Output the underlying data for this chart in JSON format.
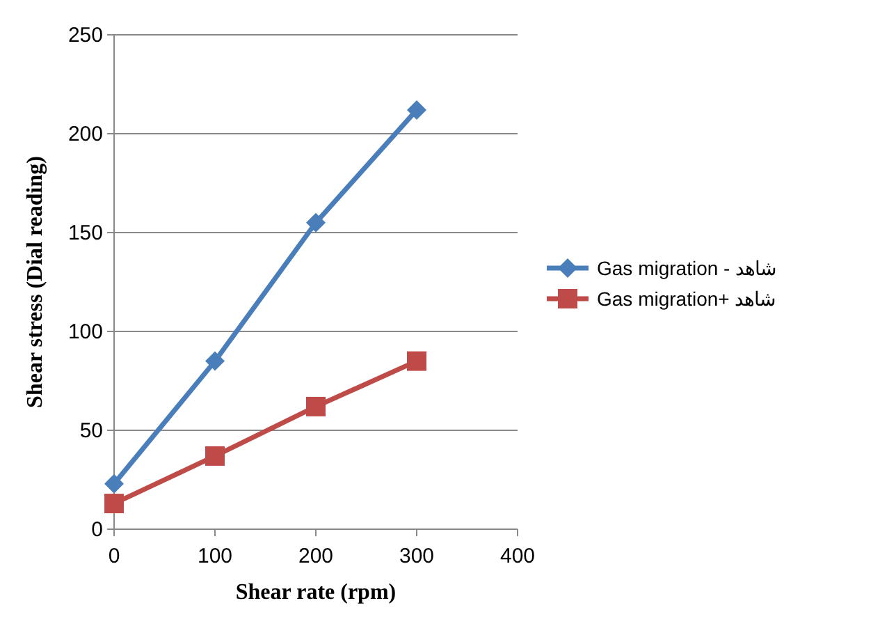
{
  "chart_data": {
    "type": "line",
    "xlabel": "Shear rate (rpm)",
    "ylabel": "Shear stress (Dial reading)",
    "x": [
      0,
      100,
      200,
      300
    ],
    "series": [
      {
        "name": "Gas migration - شاهد",
        "color": "#4a7ebb",
        "marker": "diamond",
        "values": [
          23,
          85,
          155,
          212
        ]
      },
      {
        "name": "Gas migration+ شاهد",
        "color": "#be4b48",
        "marker": "square",
        "values": [
          13,
          37,
          62,
          85
        ]
      }
    ],
    "xlim": [
      0,
      400
    ],
    "xticks": [
      0,
      100,
      200,
      300,
      400
    ],
    "ylim": [
      0,
      250
    ],
    "yticks": [
      0,
      50,
      100,
      150,
      200,
      250
    ],
    "grid": "y",
    "legend": "right",
    "line_style": "solid"
  }
}
